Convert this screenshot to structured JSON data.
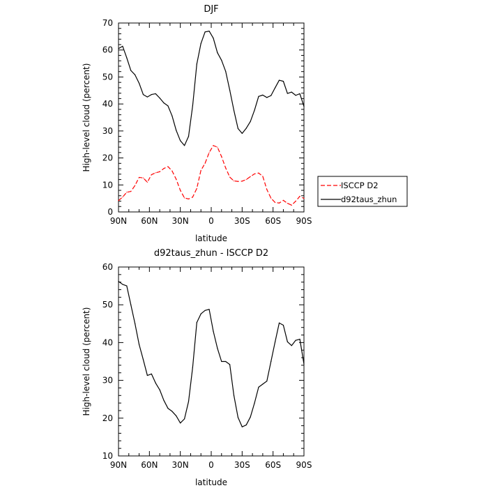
{
  "chart_data": [
    {
      "type": "line",
      "title": "DJF",
      "xlabel": "latitude",
      "ylabel": "High-level cloud (percent)",
      "xlim": [
        -90,
        90
      ],
      "ylim": [
        0,
        70
      ],
      "x_ticks": [
        {
          "value": -90,
          "label": "90N"
        },
        {
          "value": -60,
          "label": "60N"
        },
        {
          "value": -30,
          "label": "30N"
        },
        {
          "value": 0,
          "label": "0"
        },
        {
          "value": 30,
          "label": "30S"
        },
        {
          "value": 60,
          "label": "60S"
        },
        {
          "value": 90,
          "label": "90S"
        }
      ],
      "y_ticks": [
        0,
        10,
        20,
        30,
        40,
        50,
        60,
        70
      ],
      "legend_position": "right",
      "series": [
        {
          "name": "ISCCP D2",
          "color": "#ff0000",
          "dash": "dashed",
          "x": [
            -90,
            -86,
            -82,
            -78,
            -74,
            -70,
            -66,
            -62,
            -58,
            -54,
            -50,
            -46,
            -42,
            -38,
            -34,
            -30,
            -26,
            -22,
            -18,
            -14,
            -10,
            -6,
            -2,
            2,
            6,
            10,
            14,
            18,
            22,
            26,
            30,
            34,
            38,
            42,
            46,
            50,
            54,
            58,
            62,
            66,
            70,
            74,
            78,
            82,
            86,
            90
          ],
          "y": [
            4.2,
            5.5,
            7.3,
            7.6,
            9.8,
            12.8,
            12.6,
            11.0,
            13.8,
            14.5,
            14.9,
            16.1,
            16.8,
            15.2,
            12.1,
            8.0,
            5.2,
            4.8,
            5.5,
            8.7,
            15.4,
            18.0,
            22.0,
            24.6,
            24.0,
            20.5,
            16.3,
            12.9,
            11.5,
            11.3,
            11.4,
            12.0,
            13.1,
            14.1,
            14.4,
            13.2,
            8.3,
            5.1,
            3.5,
            3.3,
            4.3,
            3.2,
            2.5,
            4.0,
            5.8,
            5.0
          ]
        },
        {
          "name": "d92taus_zhun",
          "color": "#000000",
          "dash": "solid",
          "x": [
            -90,
            -86,
            -82,
            -78,
            -74,
            -70,
            -66,
            -62,
            -58,
            -54,
            -50,
            -46,
            -42,
            -38,
            -34,
            -30,
            -26,
            -22,
            -18,
            -14,
            -10,
            -6,
            -2,
            2,
            6,
            10,
            14,
            18,
            22,
            26,
            30,
            34,
            38,
            42,
            46,
            50,
            54,
            58,
            62,
            66,
            70,
            74,
            78,
            82,
            86,
            90
          ],
          "y": [
            60.5,
            61.4,
            57.1,
            52.4,
            50.8,
            47.7,
            43.5,
            42.6,
            43.5,
            43.8,
            42.2,
            40.4,
            39.3,
            35.6,
            30.2,
            26.4,
            24.6,
            28.0,
            39.4,
            54.8,
            62.4,
            66.7,
            67.0,
            64.4,
            59.0,
            56.2,
            52.1,
            45.1,
            37.6,
            30.9,
            29.1,
            31.0,
            33.5,
            37.7,
            42.8,
            43.3,
            42.4,
            43.1,
            46.0,
            48.8,
            48.4,
            43.9,
            44.4,
            43.2,
            43.8,
            39.1
          ]
        }
      ]
    },
    {
      "type": "line",
      "title": "d92taus_zhun - ISCCP D2",
      "xlabel": "latitude",
      "ylabel": "High-level cloud (percent)",
      "xlim": [
        -90,
        90
      ],
      "ylim": [
        10,
        60
      ],
      "x_ticks": [
        {
          "value": -90,
          "label": "90N"
        },
        {
          "value": -60,
          "label": "60N"
        },
        {
          "value": -30,
          "label": "30N"
        },
        {
          "value": 0,
          "label": "0"
        },
        {
          "value": 30,
          "label": "30S"
        },
        {
          "value": 60,
          "label": "60S"
        },
        {
          "value": 90,
          "label": "90S"
        }
      ],
      "y_ticks": [
        10,
        20,
        30,
        40,
        50,
        60
      ],
      "series": [
        {
          "color": "#000000",
          "dash": "solid",
          "x": [
            -90,
            -86,
            -82,
            -78,
            -74,
            -70,
            -66,
            -62,
            -58,
            -54,
            -50,
            -46,
            -42,
            -38,
            -34,
            -30,
            -26,
            -22,
            -18,
            -14,
            -10,
            -6,
            -2,
            2,
            6,
            10,
            14,
            18,
            22,
            26,
            30,
            34,
            38,
            42,
            46,
            50,
            54,
            58,
            62,
            66,
            70,
            74,
            78,
            82,
            86,
            90
          ],
          "y": [
            56.2,
            55.4,
            55.0,
            50.0,
            45.0,
            39.5,
            35.5,
            31.3,
            31.7,
            29.3,
            27.5,
            24.7,
            22.6,
            21.8,
            20.6,
            18.7,
            19.8,
            24.4,
            33.5,
            45.3,
            47.6,
            48.5,
            48.8,
            43.0,
            38.5,
            35.0,
            35.0,
            34.2,
            26.0,
            20.2,
            17.7,
            18.2,
            20.3,
            24.0,
            28.2,
            29.0,
            29.8,
            35.0,
            40.2,
            45.2,
            44.6,
            40.2,
            39.2,
            40.6,
            40.9,
            34.3
          ]
        }
      ]
    }
  ]
}
